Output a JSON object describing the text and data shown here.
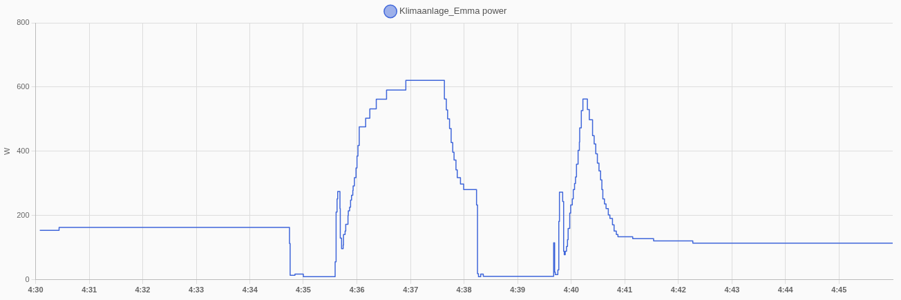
{
  "chart_data": {
    "type": "step",
    "ylabel": "W",
    "legend": "top",
    "grid": true,
    "marker": "none",
    "line_style": "solid",
    "xlim": [
      4.5,
      4.7667
    ],
    "ylim": [
      0,
      800
    ],
    "yticks": [
      0,
      200,
      400,
      600,
      800
    ],
    "xticks": [
      {
        "value": 4.5,
        "label": "4:30"
      },
      {
        "value": 4.5167,
        "label": "4:31"
      },
      {
        "value": 4.5333,
        "label": "4:32"
      },
      {
        "value": 4.55,
        "label": "4:33"
      },
      {
        "value": 4.5667,
        "label": "4:34"
      },
      {
        "value": 4.5833,
        "label": "4:35"
      },
      {
        "value": 4.6,
        "label": "4:36"
      },
      {
        "value": 4.6167,
        "label": "4:37"
      },
      {
        "value": 4.6333,
        "label": "4:38"
      },
      {
        "value": 4.65,
        "label": "4:39"
      },
      {
        "value": 4.6667,
        "label": "4:40"
      },
      {
        "value": 4.6833,
        "label": "4:41"
      },
      {
        "value": 4.7,
        "label": "4:42"
      },
      {
        "value": 4.7167,
        "label": "4:43"
      },
      {
        "value": 4.7333,
        "label": "4:44"
      },
      {
        "value": 4.75,
        "label": "4:45"
      }
    ],
    "series": [
      {
        "name": "Klimaanlage_Emma power",
        "color": "#3f66da",
        "x": [
          4.5013,
          4.5073,
          4.579,
          4.5792,
          4.5807,
          4.5833,
          4.5932,
          4.5935,
          4.5938,
          4.594,
          4.5947,
          4.5948,
          4.5952,
          4.5957,
          4.5958,
          4.5963,
          4.5965,
          4.5972,
          4.5973,
          4.5977,
          4.598,
          4.5983,
          4.5987,
          4.5988,
          4.5992,
          4.5997,
          4.6,
          4.6003,
          4.6007,
          4.6027,
          4.604,
          4.606,
          4.6092,
          4.6152,
          4.6272,
          4.6278,
          4.6282,
          4.6288,
          4.6293,
          4.6298,
          4.6302,
          4.6308,
          4.6312,
          4.6322,
          4.6332,
          4.6372,
          4.6375,
          4.6378,
          4.6385,
          4.6393,
          4.6612,
          4.6615,
          4.6617,
          4.6625,
          4.6628,
          4.663,
          4.664,
          4.6643,
          4.6645,
          4.6648,
          4.6652,
          4.6655,
          4.6657,
          4.6662,
          4.6665,
          4.667,
          4.6673,
          4.6677,
          4.668,
          4.6683,
          4.6688,
          4.6692,
          4.6693,
          4.6698,
          4.6703,
          4.6717,
          4.6723,
          4.6733,
          4.6738,
          4.6743,
          4.6748,
          4.6753,
          4.6758,
          4.6762,
          4.6765,
          4.677,
          4.6775,
          4.6782,
          4.6787,
          4.6795,
          4.68,
          4.6807,
          4.6812,
          4.6858,
          4.6923,
          4.7045,
          4.7667
        ],
        "values": [
          154,
          163,
          113,
          14,
          18,
          10,
          56,
          211,
          252,
          275,
          222,
          130,
          97,
          108,
          141,
          152,
          173,
          200,
          215,
          226,
          248,
          263,
          278,
          292,
          318,
          348,
          385,
          418,
          476,
          503,
          532,
          562,
          591,
          621,
          563,
          529,
          501,
          471,
          427,
          397,
          373,
          342,
          318,
          298,
          281,
          233,
          19,
          10,
          18,
          11,
          115,
          24,
          16,
          31,
          182,
          273,
          244,
          89,
          78,
          89,
          104,
          125,
          160,
          208,
          233,
          252,
          281,
          300,
          320,
          360,
          403,
          429,
          473,
          527,
          563,
          530,
          498,
          449,
          423,
          392,
          363,
          339,
          311,
          281,
          252,
          236,
          222,
          202,
          191,
          171,
          152,
          141,
          134,
          128,
          121,
          114,
          114
        ]
      }
    ]
  }
}
